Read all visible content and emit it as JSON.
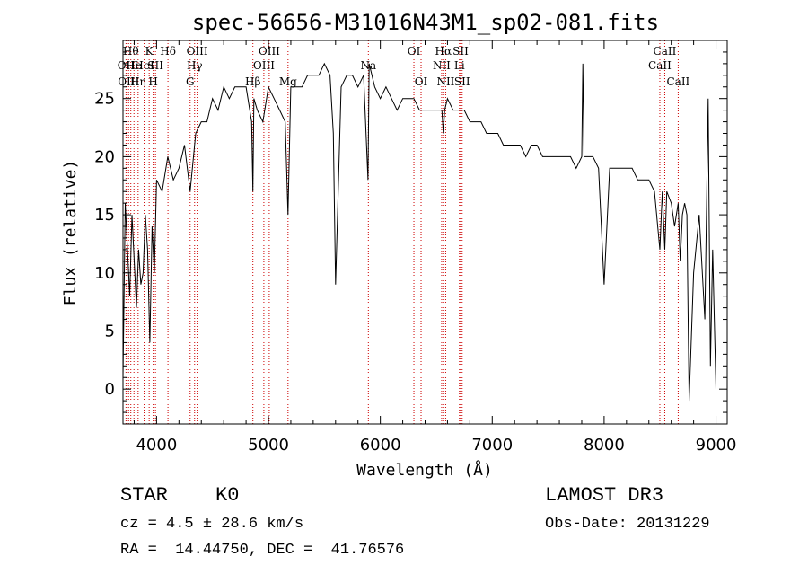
{
  "chart_data": {
    "type": "line",
    "title": "spec-56656-M31016N43M1_sp02-081.fits",
    "xlabel": "Wavelength (Å)",
    "ylabel": "Flux (relative)",
    "xlim": [
      3700,
      9100
    ],
    "ylim": [
      -3,
      30
    ],
    "xticks": [
      4000,
      5000,
      6000,
      7000,
      8000,
      9000
    ],
    "yticks": [
      0,
      5,
      10,
      15,
      20,
      25
    ],
    "grid": false,
    "series": [
      {
        "name": "spectrum",
        "x": [
          3700,
          3720,
          3740,
          3760,
          3780,
          3800,
          3820,
          3840,
          3860,
          3880,
          3900,
          3920,
          3940,
          3960,
          3980,
          4000,
          4050,
          4100,
          4150,
          4200,
          4250,
          4300,
          4350,
          4400,
          4450,
          4500,
          4550,
          4600,
          4650,
          4700,
          4750,
          4800,
          4850,
          4861,
          4870,
          4900,
          4950,
          5000,
          5050,
          5100,
          5150,
          5175,
          5200,
          5250,
          5300,
          5350,
          5400,
          5450,
          5500,
          5550,
          5580,
          5600,
          5650,
          5700,
          5750,
          5800,
          5850,
          5890,
          5900,
          5950,
          6000,
          6050,
          6100,
          6150,
          6200,
          6250,
          6300,
          6350,
          6400,
          6450,
          6500,
          6550,
          6563,
          6575,
          6600,
          6650,
          6700,
          6750,
          6800,
          6850,
          6900,
          6950,
          7000,
          7050,
          7100,
          7150,
          7200,
          7250,
          7300,
          7350,
          7400,
          7450,
          7500,
          7550,
          7600,
          7650,
          7700,
          7750,
          7800,
          7810,
          7820,
          7850,
          7900,
          7950,
          8000,
          8050,
          8100,
          8150,
          8200,
          8250,
          8300,
          8350,
          8400,
          8450,
          8498,
          8520,
          8542,
          8560,
          8600,
          8630,
          8662,
          8680,
          8700,
          8720,
          8740,
          8760,
          8800,
          8850,
          8900,
          8930,
          8950,
          8970,
          9000
        ],
        "y": [
          1,
          16,
          12,
          8,
          15,
          11,
          7,
          12,
          9,
          10,
          15,
          12,
          4,
          14,
          10,
          18,
          17,
          20,
          18,
          19,
          21,
          17,
          22,
          23,
          23,
          25,
          24,
          26,
          25,
          26,
          26,
          26,
          23,
          17,
          25,
          24,
          23,
          26,
          25,
          24,
          23,
          15,
          26,
          26,
          26,
          27,
          27,
          27,
          28,
          27,
          22,
          9,
          26,
          27,
          27,
          26,
          27,
          18,
          28,
          26,
          25,
          26,
          25,
          24,
          25,
          25,
          25,
          24,
          24,
          24,
          24,
          24,
          22,
          24,
          25,
          24,
          24,
          24,
          23,
          23,
          23,
          22,
          22,
          22,
          21,
          21,
          21,
          21,
          20,
          21,
          21,
          20,
          20,
          20,
          20,
          20,
          20,
          19,
          20,
          28,
          20,
          20,
          20,
          19,
          9,
          19,
          19,
          19,
          19,
          19,
          18,
          18,
          18,
          17,
          12,
          17,
          12,
          17,
          16,
          14,
          16,
          11,
          15,
          16,
          15,
          -1,
          10,
          15,
          6,
          25,
          2,
          12,
          0
        ]
      }
    ],
    "spectral_lines": [
      {
        "wl": 3727,
        "label": "OII",
        "row": 2
      },
      {
        "wl": 3750,
        "label": "OIII",
        "row": 3
      },
      {
        "wl": 3770,
        "label": "Hθ",
        "row": 1
      },
      {
        "wl": 3798,
        "label": "He",
        "row": 2
      },
      {
        "wl": 3835,
        "label": "Hη",
        "row": 3
      },
      {
        "wl": 3889,
        "label": "HeI",
        "row": 2
      },
      {
        "wl": 3934,
        "label": "K",
        "row": 1
      },
      {
        "wl": 3970,
        "label": "H",
        "row": 3
      },
      {
        "wl": 3990,
        "label": "SII",
        "row": 2
      },
      {
        "wl": 4102,
        "label": "Hδ",
        "row": 1
      },
      {
        "wl": 4300,
        "label": "G",
        "row": 3
      },
      {
        "wl": 4340,
        "label": "Hγ",
        "row": 2
      },
      {
        "wl": 4363,
        "label": "OIII",
        "row": 1
      },
      {
        "wl": 4861,
        "label": "Hβ",
        "row": 3
      },
      {
        "wl": 4959,
        "label": "OIII",
        "row": 2
      },
      {
        "wl": 5007,
        "label": "OIII",
        "row": 1
      },
      {
        "wl": 5175,
        "label": "Mg",
        "row": 3
      },
      {
        "wl": 5893,
        "label": "Na",
        "row": 2
      },
      {
        "wl": 6300,
        "label": "OI",
        "row": 1
      },
      {
        "wl": 6364,
        "label": "OI",
        "row": 3
      },
      {
        "wl": 6548,
        "label": "NII",
        "row": 2
      },
      {
        "wl": 6563,
        "label": "Hα",
        "row": 1
      },
      {
        "wl": 6584,
        "label": "NII",
        "row": 3
      },
      {
        "wl": 6707,
        "label": "Li",
        "row": 2
      },
      {
        "wl": 6717,
        "label": "SII",
        "row": 1
      },
      {
        "wl": 6731,
        "label": "SII",
        "row": 3
      },
      {
        "wl": 8498,
        "label": "CaII",
        "row": 2
      },
      {
        "wl": 8542,
        "label": "CaII",
        "row": 1
      },
      {
        "wl": 8662,
        "label": "CaII",
        "row": 3
      }
    ]
  },
  "info": {
    "class_label": "STAR",
    "subclass": "K0",
    "survey": "LAMOST DR3",
    "cz": "cz = 4.5 ± 28.6 km/s",
    "obs_date": "Obs-Date: 20131229",
    "coords": "RA =  14.44750, DEC =  41.76576"
  },
  "colors": {
    "line": "#000000",
    "marker": "#cc0000"
  }
}
